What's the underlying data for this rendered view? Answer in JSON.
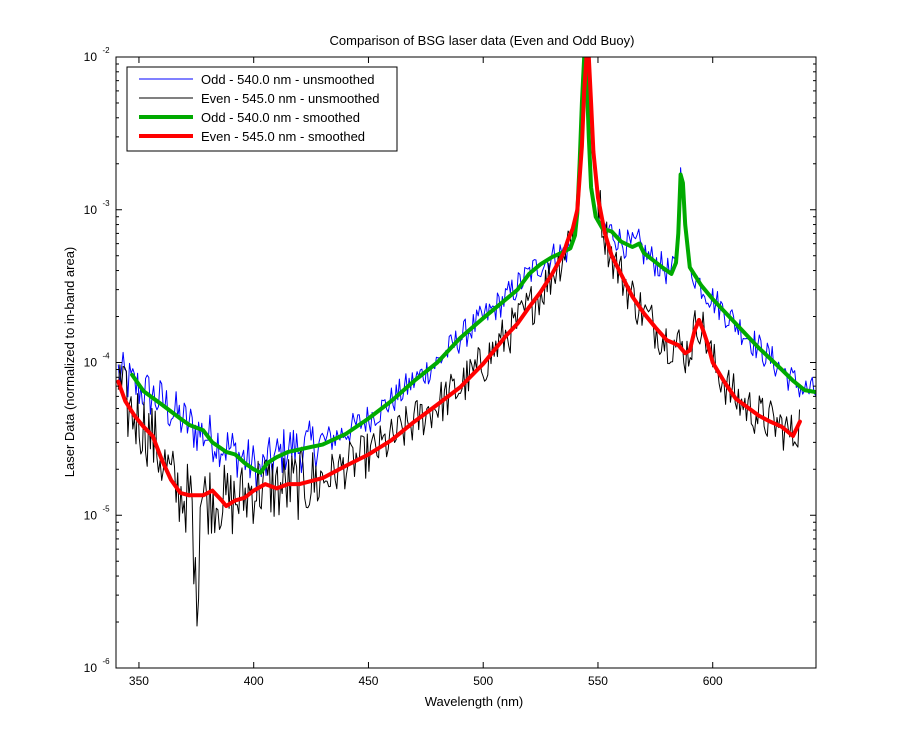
{
  "chart_data": {
    "type": "line",
    "title": "Comparison of BSG laser data (Even and Odd Buoy)",
    "xlabel": "Wavelength (nm)",
    "ylabel": "Laser Data (normalized to in-band area)",
    "xlim": [
      340,
      645
    ],
    "ylim": [
      1e-06,
      0.01
    ],
    "yscale": "log",
    "grid": false,
    "legend_position": "top-left",
    "x_ticks": [
      "350",
      "400",
      "450",
      "500",
      "550",
      "600"
    ],
    "y_ticks": [
      {
        "base": "10",
        "exp": "-6",
        "value": 1e-06
      },
      {
        "base": "10",
        "exp": "-5",
        "value": 1e-05
      },
      {
        "base": "10",
        "exp": "-4",
        "value": 0.0001
      },
      {
        "base": "10",
        "exp": "-3",
        "value": 0.001
      },
      {
        "base": "10",
        "exp": "-2",
        "value": 0.01
      }
    ],
    "series": [
      {
        "name": "Odd - 540.0 nm - unsmoothed",
        "color": "#0000ff",
        "width": 1,
        "noise": 0.1,
        "x": [
          341,
          347,
          352,
          360,
          368,
          375,
          382,
          390,
          395,
          400,
          403,
          406,
          410,
          415,
          420,
          425,
          430,
          440,
          450,
          460,
          470,
          480,
          490,
          500,
          510,
          520,
          525,
          530,
          535,
          538,
          540,
          541,
          542,
          543,
          544,
          545,
          546,
          547,
          549,
          552,
          556,
          560,
          565,
          568,
          570,
          573,
          578,
          582,
          584,
          585,
          586,
          587,
          588,
          590,
          595,
          600,
          610,
          620,
          630,
          635,
          640,
          645
        ],
        "values": [
          8.6e-05,
          7.2e-05,
          6.5e-05,
          5.5e-05,
          4.3e-05,
          3.6e-05,
          3.2e-05,
          2.7e-05,
          2.4e-05,
          2.1e-05,
          1.9e-05,
          2.2e-05,
          2.4e-05,
          2.8e-05,
          2.7e-05,
          2.9e-05,
          3e-05,
          3.5e-05,
          4.3e-05,
          5.6e-05,
          7.6e-05,
          0.0001,
          0.000145,
          0.000195,
          0.000265,
          0.00038,
          0.00044,
          0.00049,
          0.00053,
          0.00056,
          0.00068,
          0.00095,
          0.002,
          0.005,
          0.01,
          0.008,
          0.003,
          0.0014,
          0.0009,
          0.00075,
          0.00072,
          0.00062,
          0.00057,
          0.0006,
          0.00052,
          0.00048,
          0.00042,
          0.00038,
          0.00045,
          0.0007,
          0.0017,
          0.0015,
          0.0008,
          0.00042,
          0.00032,
          0.00026,
          0.00018,
          0.000125,
          9e-05,
          7.6e-05,
          6.6e-05,
          6.4e-05
        ]
      },
      {
        "name": "Even - 545.0 nm - unsmoothed",
        "color": "#000000",
        "width": 1,
        "noise": 0.15,
        "x": [
          341,
          345,
          350,
          355,
          358,
          362,
          366,
          370,
          375,
          380,
          385,
          390,
          395,
          400,
          405,
          410,
          420,
          430,
          440,
          450,
          460,
          470,
          480,
          490,
          500,
          510,
          515,
          520,
          525,
          530,
          535,
          537,
          539,
          541,
          543,
          544,
          545,
          546,
          547,
          548,
          550,
          553,
          556,
          560,
          565,
          570,
          575,
          580,
          585,
          588,
          590,
          592,
          594,
          596,
          598,
          600,
          605,
          610,
          620,
          625,
          630,
          635,
          638
        ],
        "values": [
          7.2e-05,
          5e-05,
          4.2e-05,
          3.4e-05,
          2.7e-05,
          2e-05,
          1.5e-05,
          1.3e-05,
          1.3e-05,
          1.3e-05,
          1.3e-05,
          1.2e-05,
          1.3e-05,
          1.5e-05,
          1.6e-05,
          1.5e-05,
          1.6e-05,
          1.7e-05,
          2.1e-05,
          2.5e-05,
          3.1e-05,
          4.1e-05,
          5.3e-05,
          6.9e-05,
          9.8e-05,
          0.00015,
          0.00018,
          0.00023,
          0.00029,
          0.00038,
          0.00052,
          0.00064,
          0.00075,
          0.001,
          0.0026,
          0.006,
          0.01,
          0.01,
          0.005,
          0.0024,
          0.0012,
          0.0007,
          0.0005,
          0.00038,
          0.00027,
          0.00021,
          0.00017,
          0.00014,
          0.00013,
          0.000115,
          0.00012,
          0.00016,
          0.00019,
          0.00016,
          0.00013,
          0.0001,
          7.5e-05,
          5.8e-05,
          4.5e-05,
          4.1e-05,
          3.8e-05,
          3.3e-05,
          4.1e-05
        ]
      },
      {
        "name": "Odd - 540.0 nm - smoothed",
        "color": "#00aa00",
        "width": 4,
        "noise": 0,
        "x": [
          347,
          352,
          360,
          368,
          372,
          378,
          382,
          388,
          392,
          396,
          400,
          403,
          406,
          410,
          415,
          420,
          425,
          430,
          440,
          450,
          460,
          470,
          480,
          490,
          500,
          510,
          515,
          520,
          525,
          530,
          535,
          538,
          540,
          541,
          542,
          543,
          544,
          545,
          546,
          547,
          549,
          552,
          556,
          560,
          565,
          568,
          570,
          573,
          578,
          582,
          584,
          585,
          586,
          587,
          588,
          590,
          595,
          600,
          610,
          620,
          630,
          635,
          640,
          645
        ],
        "values": [
          8.3e-05,
          6.5e-05,
          5.3e-05,
          4.3e-05,
          3.9e-05,
          3.6e-05,
          3e-05,
          2.6e-05,
          2.5e-05,
          2.2e-05,
          2e-05,
          1.9e-05,
          2.2e-05,
          2.4e-05,
          2.6e-05,
          2.7e-05,
          2.8e-05,
          2.9e-05,
          3.4e-05,
          4.3e-05,
          5.6e-05,
          7.6e-05,
          0.0001,
          0.000145,
          0.000195,
          0.00026,
          0.0003,
          0.00038,
          0.00044,
          0.00049,
          0.00053,
          0.00056,
          0.00068,
          0.00095,
          0.002,
          0.005,
          0.01,
          0.008,
          0.003,
          0.0014,
          0.0009,
          0.00075,
          0.00072,
          0.00062,
          0.00057,
          0.0006,
          0.00052,
          0.00048,
          0.00042,
          0.00038,
          0.00045,
          0.0007,
          0.0017,
          0.0015,
          0.0008,
          0.00042,
          0.00032,
          0.00026,
          0.00018,
          0.000125,
          9e-05,
          7.6e-05,
          6.6e-05,
          6.4e-05
        ]
      },
      {
        "name": "Even - 545.0 nm - smoothed",
        "color": "#ff0000",
        "width": 4,
        "noise": 0,
        "x": [
          341,
          344,
          348,
          352,
          356,
          360,
          364,
          368,
          372,
          378,
          382,
          386,
          388,
          392,
          396,
          400,
          405,
          410,
          415,
          420,
          430,
          440,
          450,
          460,
          470,
          480,
          490,
          500,
          510,
          515,
          520,
          525,
          530,
          535,
          537,
          539,
          541,
          543,
          544,
          545,
          546,
          547,
          548,
          550,
          553,
          556,
          560,
          565,
          570,
          575,
          580,
          585,
          588,
          590,
          592,
          594,
          596,
          598,
          600,
          605,
          610,
          620,
          625,
          630,
          635,
          638
        ],
        "values": [
          7.5e-05,
          5.6e-05,
          4.5e-05,
          3.8e-05,
          3.3e-05,
          2.3e-05,
          1.7e-05,
          1.4e-05,
          1.35e-05,
          1.35e-05,
          1.45e-05,
          1.25e-05,
          1.15e-05,
          1.25e-05,
          1.3e-05,
          1.45e-05,
          1.6e-05,
          1.5e-05,
          1.6e-05,
          1.6e-05,
          1.75e-05,
          2.1e-05,
          2.5e-05,
          3.1e-05,
          4.1e-05,
          5.3e-05,
          6.9e-05,
          9.8e-05,
          0.00015,
          0.00018,
          0.00023,
          0.00029,
          0.00038,
          0.00052,
          0.00064,
          0.00075,
          0.001,
          0.0026,
          0.006,
          0.01,
          0.01,
          0.005,
          0.0024,
          0.0012,
          0.0007,
          0.0005,
          0.00038,
          0.00027,
          0.00021,
          0.00017,
          0.00014,
          0.00013,
          0.000115,
          0.00012,
          0.00016,
          0.00019,
          0.00016,
          0.00013,
          0.0001,
          7.5e-05,
          5.8e-05,
          4.5e-05,
          4.1e-05,
          3.8e-05,
          3.3e-05,
          4.1e-05
        ]
      }
    ]
  }
}
